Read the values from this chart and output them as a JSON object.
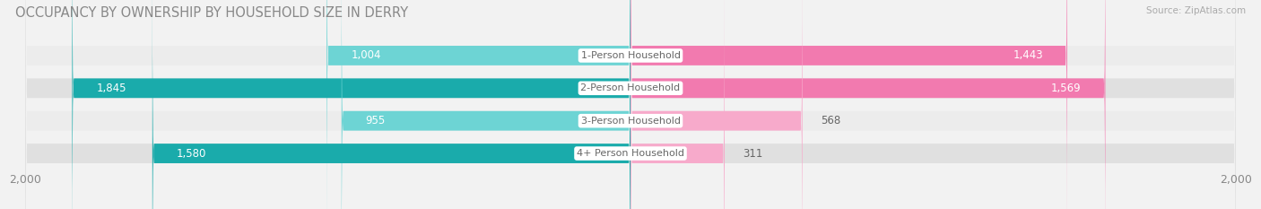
{
  "title": "OCCUPANCY BY OWNERSHIP BY HOUSEHOLD SIZE IN DERRY",
  "source": "Source: ZipAtlas.com",
  "categories": [
    "1-Person Household",
    "2-Person Household",
    "3-Person Household",
    "4+ Person Household"
  ],
  "owner_values": [
    1004,
    1845,
    955,
    1580
  ],
  "renter_values": [
    1443,
    1569,
    568,
    311
  ],
  "owner_colors": [
    "#6DD4D4",
    "#1AABAB",
    "#6DD4D4",
    "#1AABAB"
  ],
  "renter_colors": [
    "#F27AAF",
    "#F27AAF",
    "#F7AACB",
    "#F7AACB"
  ],
  "bg_color": [
    "#ECECEC",
    "#E0E0E0",
    "#ECECEC",
    "#E0E0E0"
  ],
  "axis_max": 2000,
  "background_color": "#F2F2F2",
  "title_fontsize": 10.5,
  "val_fontsize": 8.5,
  "cat_fontsize": 8.0,
  "tick_fontsize": 9,
  "figsize": [
    14.06,
    2.33
  ],
  "dpi": 100
}
